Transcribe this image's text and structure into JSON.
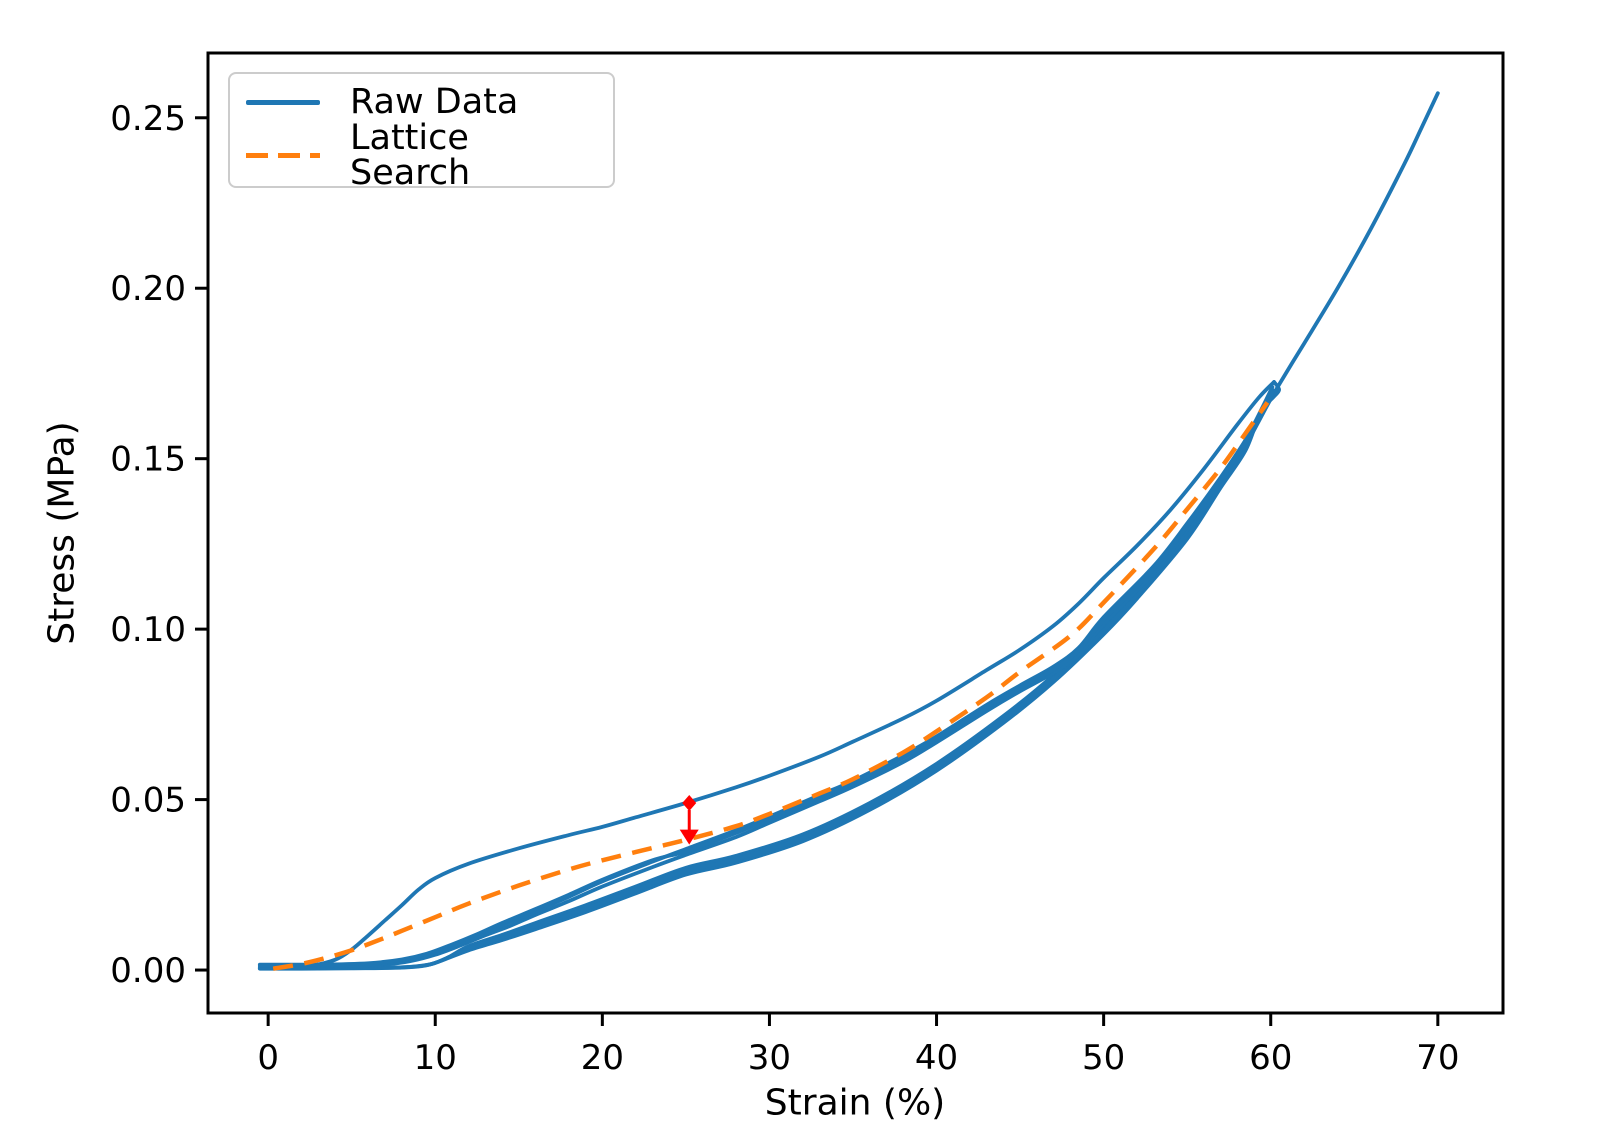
{
  "figure": {
    "background": "#ffffff"
  },
  "chart_data": {
    "type": "line",
    "title": "",
    "xlabel": "Strain (%)",
    "ylabel": "Stress (MPa)",
    "x_range": [
      -3.6,
      73.9
    ],
    "y_range": [
      -0.0126,
      0.269
    ],
    "x_ticks": [
      0,
      10,
      20,
      30,
      40,
      50,
      60,
      70
    ],
    "y_ticks": [
      0,
      0.05,
      0.1,
      0.15,
      0.2,
      0.25
    ],
    "y_tick_decimals": 2,
    "grid": false,
    "axis_color": "#000000",
    "legend": {
      "position": "upper-left",
      "entries": [
        {
          "label": "Raw Data",
          "color": "#1f77b4",
          "style": "solid"
        },
        {
          "label": "Lattice Search",
          "color": "#ff7f0e",
          "style": "dashed"
        }
      ]
    },
    "series": [
      {
        "name": "raw-initial-loading",
        "legend_label": "Raw Data",
        "color": "#1f77b4",
        "style": "solid",
        "width": 3.8,
        "points": [
          [
            -0.5,
            0.0005
          ],
          [
            1,
            0.0007
          ],
          [
            2.5,
            0.0012
          ],
          [
            4,
            0.003
          ],
          [
            5,
            0.006
          ],
          [
            6,
            0.0102
          ],
          [
            7,
            0.0146
          ],
          [
            8,
            0.019
          ],
          [
            9,
            0.0236
          ],
          [
            10,
            0.027
          ],
          [
            12,
            0.0312
          ],
          [
            15,
            0.0357
          ],
          [
            18,
            0.0396
          ],
          [
            20,
            0.042
          ],
          [
            22,
            0.0448
          ],
          [
            25,
            0.049
          ],
          [
            28,
            0.0536
          ],
          [
            30,
            0.057
          ],
          [
            33,
            0.0626
          ],
          [
            35,
            0.067
          ],
          [
            38,
            0.0738
          ],
          [
            40,
            0.079
          ],
          [
            43,
            0.088
          ],
          [
            45,
            0.094
          ],
          [
            47,
            0.101
          ],
          [
            48.5,
            0.1075
          ],
          [
            50,
            0.115
          ],
          [
            52,
            0.1245
          ],
          [
            54,
            0.135
          ],
          [
            56,
            0.147
          ],
          [
            58,
            0.16
          ],
          [
            59.3,
            0.168
          ],
          [
            60.2,
            0.1725
          ]
        ]
      },
      {
        "name": "raw-unloading-1",
        "legend_label": null,
        "color": "#1f77b4",
        "style": "solid",
        "width": 3.8,
        "points": [
          [
            60.2,
            0.1725
          ],
          [
            60.5,
            0.1702
          ],
          [
            60.15,
            0.168
          ],
          [
            59.4,
            0.1638
          ],
          [
            58.5,
            0.1525
          ],
          [
            57,
            0.1415
          ],
          [
            55,
            0.1265
          ],
          [
            52,
            0.109
          ],
          [
            50,
            0.0985
          ],
          [
            47,
            0.0845
          ],
          [
            44,
            0.0725
          ],
          [
            40,
            0.0585
          ],
          [
            36,
            0.047
          ],
          [
            32,
            0.0378
          ],
          [
            28,
            0.0315
          ],
          [
            25,
            0.028
          ],
          [
            22,
            0.0225
          ],
          [
            19,
            0.017
          ],
          [
            16,
            0.012
          ],
          [
            14,
            0.0088
          ],
          [
            12,
            0.0058
          ],
          [
            10.5,
            0.003
          ],
          [
            9.5,
            0.0014
          ],
          [
            8,
            0.0007
          ],
          [
            5,
            0.0005
          ],
          [
            2,
            0.0004
          ],
          [
            -0.5,
            0.0004
          ]
        ]
      },
      {
        "name": "raw-unloading-2",
        "legend_label": null,
        "color": "#1f77b4",
        "style": "solid",
        "width": 3.8,
        "points": [
          [
            60,
            0.17
          ],
          [
            58.5,
            0.1555
          ],
          [
            57,
            0.1438
          ],
          [
            55,
            0.1285
          ],
          [
            52,
            0.111
          ],
          [
            50,
            0.1005
          ],
          [
            47,
            0.0865
          ],
          [
            44,
            0.0745
          ],
          [
            40,
            0.0605
          ],
          [
            36,
            0.049
          ],
          [
            32,
            0.0398
          ],
          [
            28,
            0.0335
          ],
          [
            25,
            0.03
          ],
          [
            22,
            0.0245
          ],
          [
            19,
            0.019
          ],
          [
            16,
            0.0138
          ],
          [
            14,
            0.0103
          ],
          [
            12,
            0.007
          ],
          [
            10.8,
            0.0038
          ],
          [
            9.8,
            0.0018
          ],
          [
            8.5,
            0.0009
          ],
          [
            6,
            0.0006
          ],
          [
            3,
            0.0006
          ],
          [
            -0.4,
            0.0006
          ]
        ]
      },
      {
        "name": "raw-unloading-3",
        "legend_label": null,
        "color": "#1f77b4",
        "style": "solid",
        "width": 3.8,
        "points": [
          [
            60.1,
            0.171
          ],
          [
            58.5,
            0.154
          ],
          [
            57,
            0.1427
          ],
          [
            55,
            0.1275
          ],
          [
            52,
            0.11
          ],
          [
            50,
            0.0995
          ],
          [
            47,
            0.0855
          ],
          [
            44,
            0.0735
          ],
          [
            40,
            0.0595
          ],
          [
            36,
            0.048
          ],
          [
            32,
            0.0388
          ],
          [
            28,
            0.0325
          ],
          [
            25,
            0.029
          ],
          [
            22,
            0.0235
          ],
          [
            19,
            0.018
          ],
          [
            16,
            0.0129
          ],
          [
            14,
            0.0095
          ],
          [
            12,
            0.0064
          ],
          [
            10.6,
            0.0033
          ],
          [
            9.6,
            0.0016
          ],
          [
            8,
            0.0008
          ],
          [
            5,
            0.0006
          ],
          [
            2,
            0.0005
          ],
          [
            -0.45,
            0.0005
          ]
        ]
      },
      {
        "name": "raw-reloading-final",
        "legend_label": null,
        "color": "#1f77b4",
        "style": "solid",
        "width": 3.8,
        "points": [
          [
            -0.5,
            0.0008
          ],
          [
            2,
            0.0008
          ],
          [
            5,
            0.001
          ],
          [
            7,
            0.0016
          ],
          [
            8.5,
            0.0026
          ],
          [
            10,
            0.0045
          ],
          [
            11.5,
            0.0072
          ],
          [
            13,
            0.0102
          ],
          [
            14.5,
            0.013
          ],
          [
            16,
            0.0162
          ],
          [
            18,
            0.0202
          ],
          [
            20,
            0.0245
          ],
          [
            23,
            0.0302
          ],
          [
            25,
            0.0338
          ],
          [
            28,
            0.039
          ],
          [
            30,
            0.0432
          ],
          [
            33,
            0.0495
          ],
          [
            35,
            0.0538
          ],
          [
            38,
            0.061
          ],
          [
            40,
            0.0668
          ],
          [
            43,
            0.076
          ],
          [
            45,
            0.0818
          ],
          [
            47,
            0.0872
          ],
          [
            48.5,
            0.0925
          ],
          [
            50,
            0.1015
          ],
          [
            53,
            0.1165
          ],
          [
            55,
            0.129
          ],
          [
            57,
            0.1425
          ],
          [
            58.5,
            0.154
          ],
          [
            60,
            0.1675
          ],
          [
            61,
            0.1758
          ],
          [
            62,
            0.1838
          ],
          [
            64,
            0.2
          ],
          [
            66,
            0.2175
          ],
          [
            68,
            0.2365
          ],
          [
            69,
            0.2468
          ],
          [
            70,
            0.2572
          ]
        ]
      },
      {
        "name": "raw-reloading-2",
        "legend_label": null,
        "color": "#1f77b4",
        "style": "solid",
        "width": 3.8,
        "points": [
          [
            -0.5,
            0.0012
          ],
          [
            3,
            0.0012
          ],
          [
            6,
            0.0016
          ],
          [
            8,
            0.0026
          ],
          [
            9.5,
            0.0042
          ],
          [
            11,
            0.0068
          ],
          [
            12.5,
            0.0098
          ],
          [
            14,
            0.0131
          ],
          [
            16,
            0.0172
          ],
          [
            18,
            0.0215
          ],
          [
            20,
            0.026
          ],
          [
            23,
            0.0318
          ],
          [
            25,
            0.0355
          ],
          [
            28,
            0.041
          ],
          [
            30,
            0.045
          ],
          [
            33,
            0.0513
          ],
          [
            35,
            0.0555
          ],
          [
            38,
            0.063
          ],
          [
            40,
            0.0685
          ],
          [
            43,
            0.0778
          ],
          [
            45,
            0.0835
          ],
          [
            47,
            0.089
          ],
          [
            48.5,
            0.0945
          ],
          [
            50,
            0.1035
          ],
          [
            53,
            0.1185
          ],
          [
            55,
            0.131
          ],
          [
            57,
            0.1445
          ],
          [
            58.5,
            0.1555
          ],
          [
            59.7,
            0.1655
          ],
          [
            60.15,
            0.17
          ]
        ]
      },
      {
        "name": "raw-reloading-3",
        "legend_label": null,
        "color": "#1f77b4",
        "style": "solid",
        "width": 3.8,
        "points": [
          [
            -0.5,
            0.0016
          ],
          [
            3,
            0.0016
          ],
          [
            6,
            0.002
          ],
          [
            8,
            0.0031
          ],
          [
            9.5,
            0.0048
          ],
          [
            11,
            0.0075
          ],
          [
            12.5,
            0.0105
          ],
          [
            14,
            0.0138
          ],
          [
            16,
            0.0179
          ],
          [
            18,
            0.0221
          ],
          [
            20,
            0.0265
          ],
          [
            23,
            0.0322
          ],
          [
            25,
            0.0348
          ],
          [
            28,
            0.0402
          ],
          [
            30,
            0.0443
          ],
          [
            33,
            0.0506
          ],
          [
            35,
            0.0548
          ],
          [
            38,
            0.0622
          ],
          [
            40,
            0.0678
          ],
          [
            43,
            0.077
          ],
          [
            45,
            0.0827
          ],
          [
            47,
            0.0882
          ],
          [
            48.5,
            0.0937
          ],
          [
            50,
            0.1027
          ],
          [
            53,
            0.1177
          ],
          [
            55,
            0.1302
          ],
          [
            57,
            0.1437
          ],
          [
            58.5,
            0.1548
          ],
          [
            59.7,
            0.165
          ],
          [
            60.1,
            0.1695
          ]
        ]
      },
      {
        "name": "lattice-search-fit",
        "legend_label": "Lattice Search",
        "color": "#ff7f0e",
        "style": "dashed",
        "width": 4.5,
        "points": [
          [
            0.3,
            0.0004
          ],
          [
            2,
            0.0018
          ],
          [
            3.5,
            0.0036
          ],
          [
            5,
            0.0058
          ],
          [
            6,
            0.0076
          ],
          [
            7,
            0.0095
          ],
          [
            8,
            0.0115
          ],
          [
            10,
            0.0155
          ],
          [
            12,
            0.0195
          ],
          [
            15,
            0.0248
          ],
          [
            18,
            0.0295
          ],
          [
            20,
            0.0322
          ],
          [
            23,
            0.0358
          ],
          [
            25,
            0.0382
          ],
          [
            28,
            0.0422
          ],
          [
            30,
            0.0458
          ],
          [
            33,
            0.0518
          ],
          [
            35,
            0.056
          ],
          [
            38,
            0.0638
          ],
          [
            40,
            0.07
          ],
          [
            43,
            0.08
          ],
          [
            45,
            0.0875
          ],
          [
            48,
            0.098
          ],
          [
            50,
            0.1078
          ],
          [
            53,
            0.1235
          ],
          [
            55,
            0.1352
          ],
          [
            57,
            0.1472
          ],
          [
            58.5,
            0.1575
          ],
          [
            59.8,
            0.1665
          ]
        ]
      }
    ],
    "annotation": {
      "name": "error-arrow",
      "description": "red diamond on raw initial loading curve with arrow pointing down to lattice search curve",
      "color": "#ff0000",
      "x": 25.2,
      "marker_y": 0.049,
      "tip_y": 0.0368
    }
  }
}
